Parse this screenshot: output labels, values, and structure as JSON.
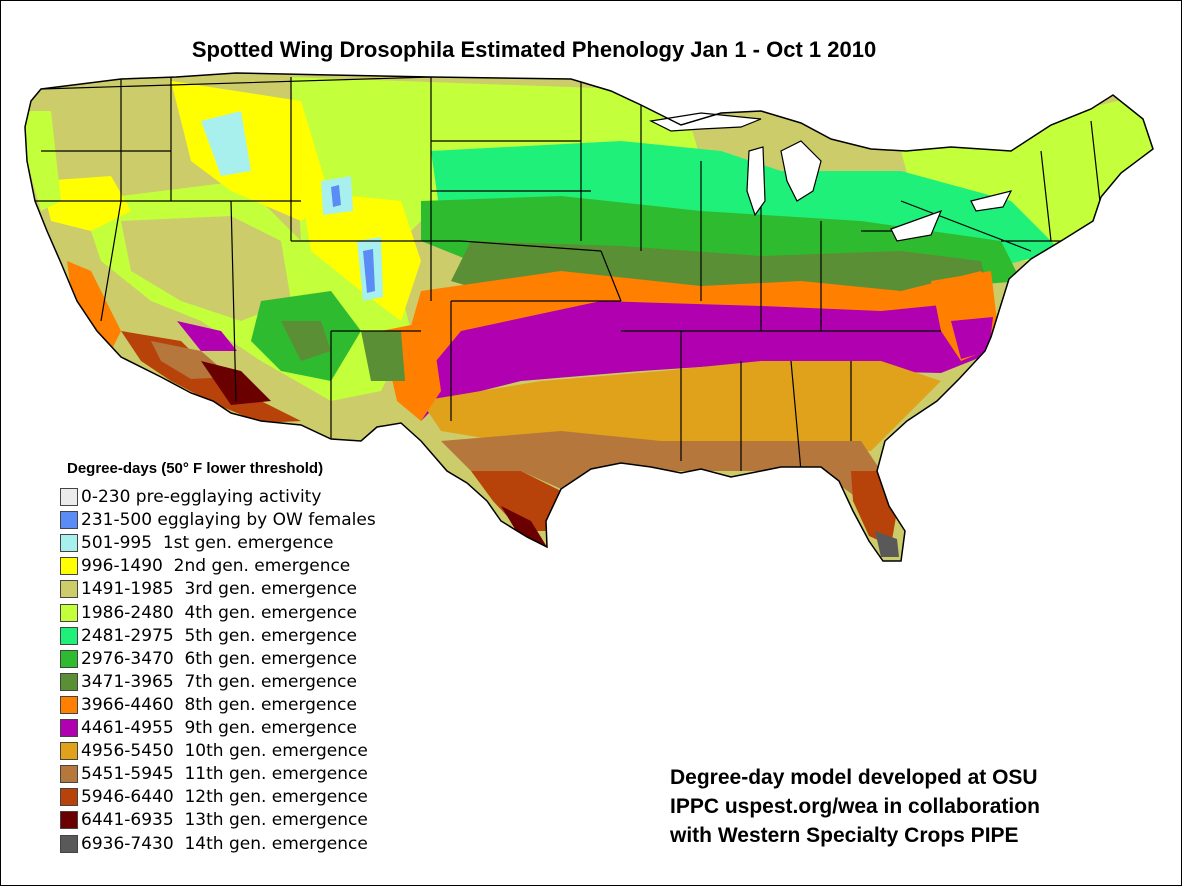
{
  "title": "Spotted Wing Drosophila Estimated Phenology Jan 1 - Oct 1 2010",
  "legend": {
    "title": "Degree-days (50° F lower threshold)",
    "items": [
      {
        "range": "0-230",
        "label": "pre-egglaying activity",
        "color": "#ebebeb"
      },
      {
        "range": "231-500",
        "label": "egglaying by OW females",
        "color": "#5b8cf5"
      },
      {
        "range": "501-995",
        "label": "1st gen. emergence",
        "color": "#a8f0ee"
      },
      {
        "range": "996-1490",
        "label": "2nd gen. emergence",
        "color": "#ffff00"
      },
      {
        "range": "1491-1985",
        "label": "3rd gen. emergence",
        "color": "#cccc6a"
      },
      {
        "range": "1986-2480",
        "label": "4th gen. emergence",
        "color": "#c3ff3a"
      },
      {
        "range": "2481-2975",
        "label": "5th gen. emergence",
        "color": "#1ff07a"
      },
      {
        "range": "2976-3470",
        "label": "6th gen. emergence",
        "color": "#2fbb2f"
      },
      {
        "range": "3471-3965",
        "label": "7th gen. emergence",
        "color": "#5a8f35"
      },
      {
        "range": "3966-4460",
        "label": "8th gen. emergence",
        "color": "#ff7f00"
      },
      {
        "range": "4461-4955",
        "label": "9th gen. emergence",
        "color": "#b000b0"
      },
      {
        "range": "4956-5450",
        "label": "10th gen. emergence",
        "color": "#e0a21a"
      },
      {
        "range": "5451-5945",
        "label": "11th gen. emergence",
        "color": "#b5773c"
      },
      {
        "range": "5946-6440",
        "label": "12th gen. emergence",
        "color": "#b8430a"
      },
      {
        "range": "6441-6935",
        "label": "13th gen. emergence",
        "color": "#6b0000"
      },
      {
        "range": "6936-7430",
        "label": "14th gen. emergence",
        "color": "#595959"
      }
    ]
  },
  "credits": [
    "Degree-day model developed at OSU",
    "IPPC uspest.org/wea in collaboration",
    "with Western Specialty Crops PIPE"
  ]
}
